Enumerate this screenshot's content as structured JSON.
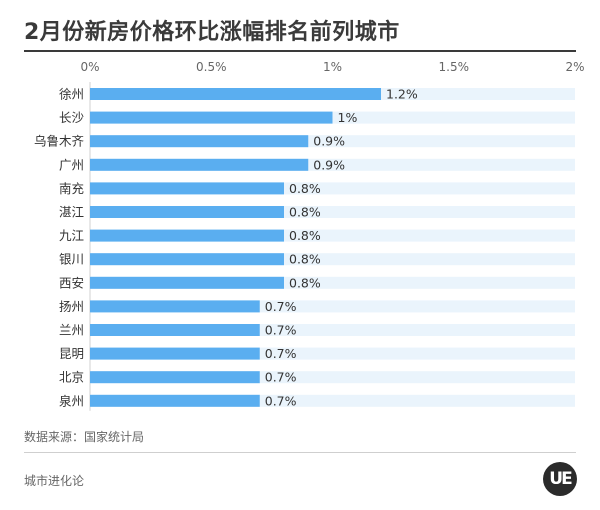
{
  "title": "2月份新房价格环比涨幅排名前列城市",
  "source": "数据来源：国家统计局",
  "footer": "城市进化论",
  "logo_text": "UE",
  "colors": {
    "bar": "#5aaef0",
    "track": "#eaf4fc",
    "text": "#333333",
    "axis": "#666666"
  },
  "chart_data": {
    "type": "bar",
    "orientation": "horizontal",
    "title": "2月份新房价格环比涨幅排名前列城市",
    "categories": [
      "徐州",
      "长沙",
      "乌鲁木齐",
      "广州",
      "南充",
      "湛江",
      "九江",
      "银川",
      "西安",
      "扬州",
      "兰州",
      "昆明",
      "北京",
      "泉州"
    ],
    "values": [
      1.2,
      1.0,
      0.9,
      0.9,
      0.8,
      0.8,
      0.8,
      0.8,
      0.8,
      0.7,
      0.7,
      0.7,
      0.7,
      0.7
    ],
    "value_labels": [
      "1.2%",
      "1%",
      "0.9%",
      "0.9%",
      "0.8%",
      "0.8%",
      "0.8%",
      "0.8%",
      "0.8%",
      "0.7%",
      "0.7%",
      "0.7%",
      "0.7%",
      "0.7%"
    ],
    "x_ticks": [
      0,
      0.5,
      1,
      1.5,
      2
    ],
    "x_tick_labels": [
      "0%",
      "0.5%",
      "1%",
      "1.5%",
      "2%"
    ],
    "xlim": [
      0,
      2
    ],
    "axis_position": "top",
    "grid": false,
    "legend": "none"
  }
}
